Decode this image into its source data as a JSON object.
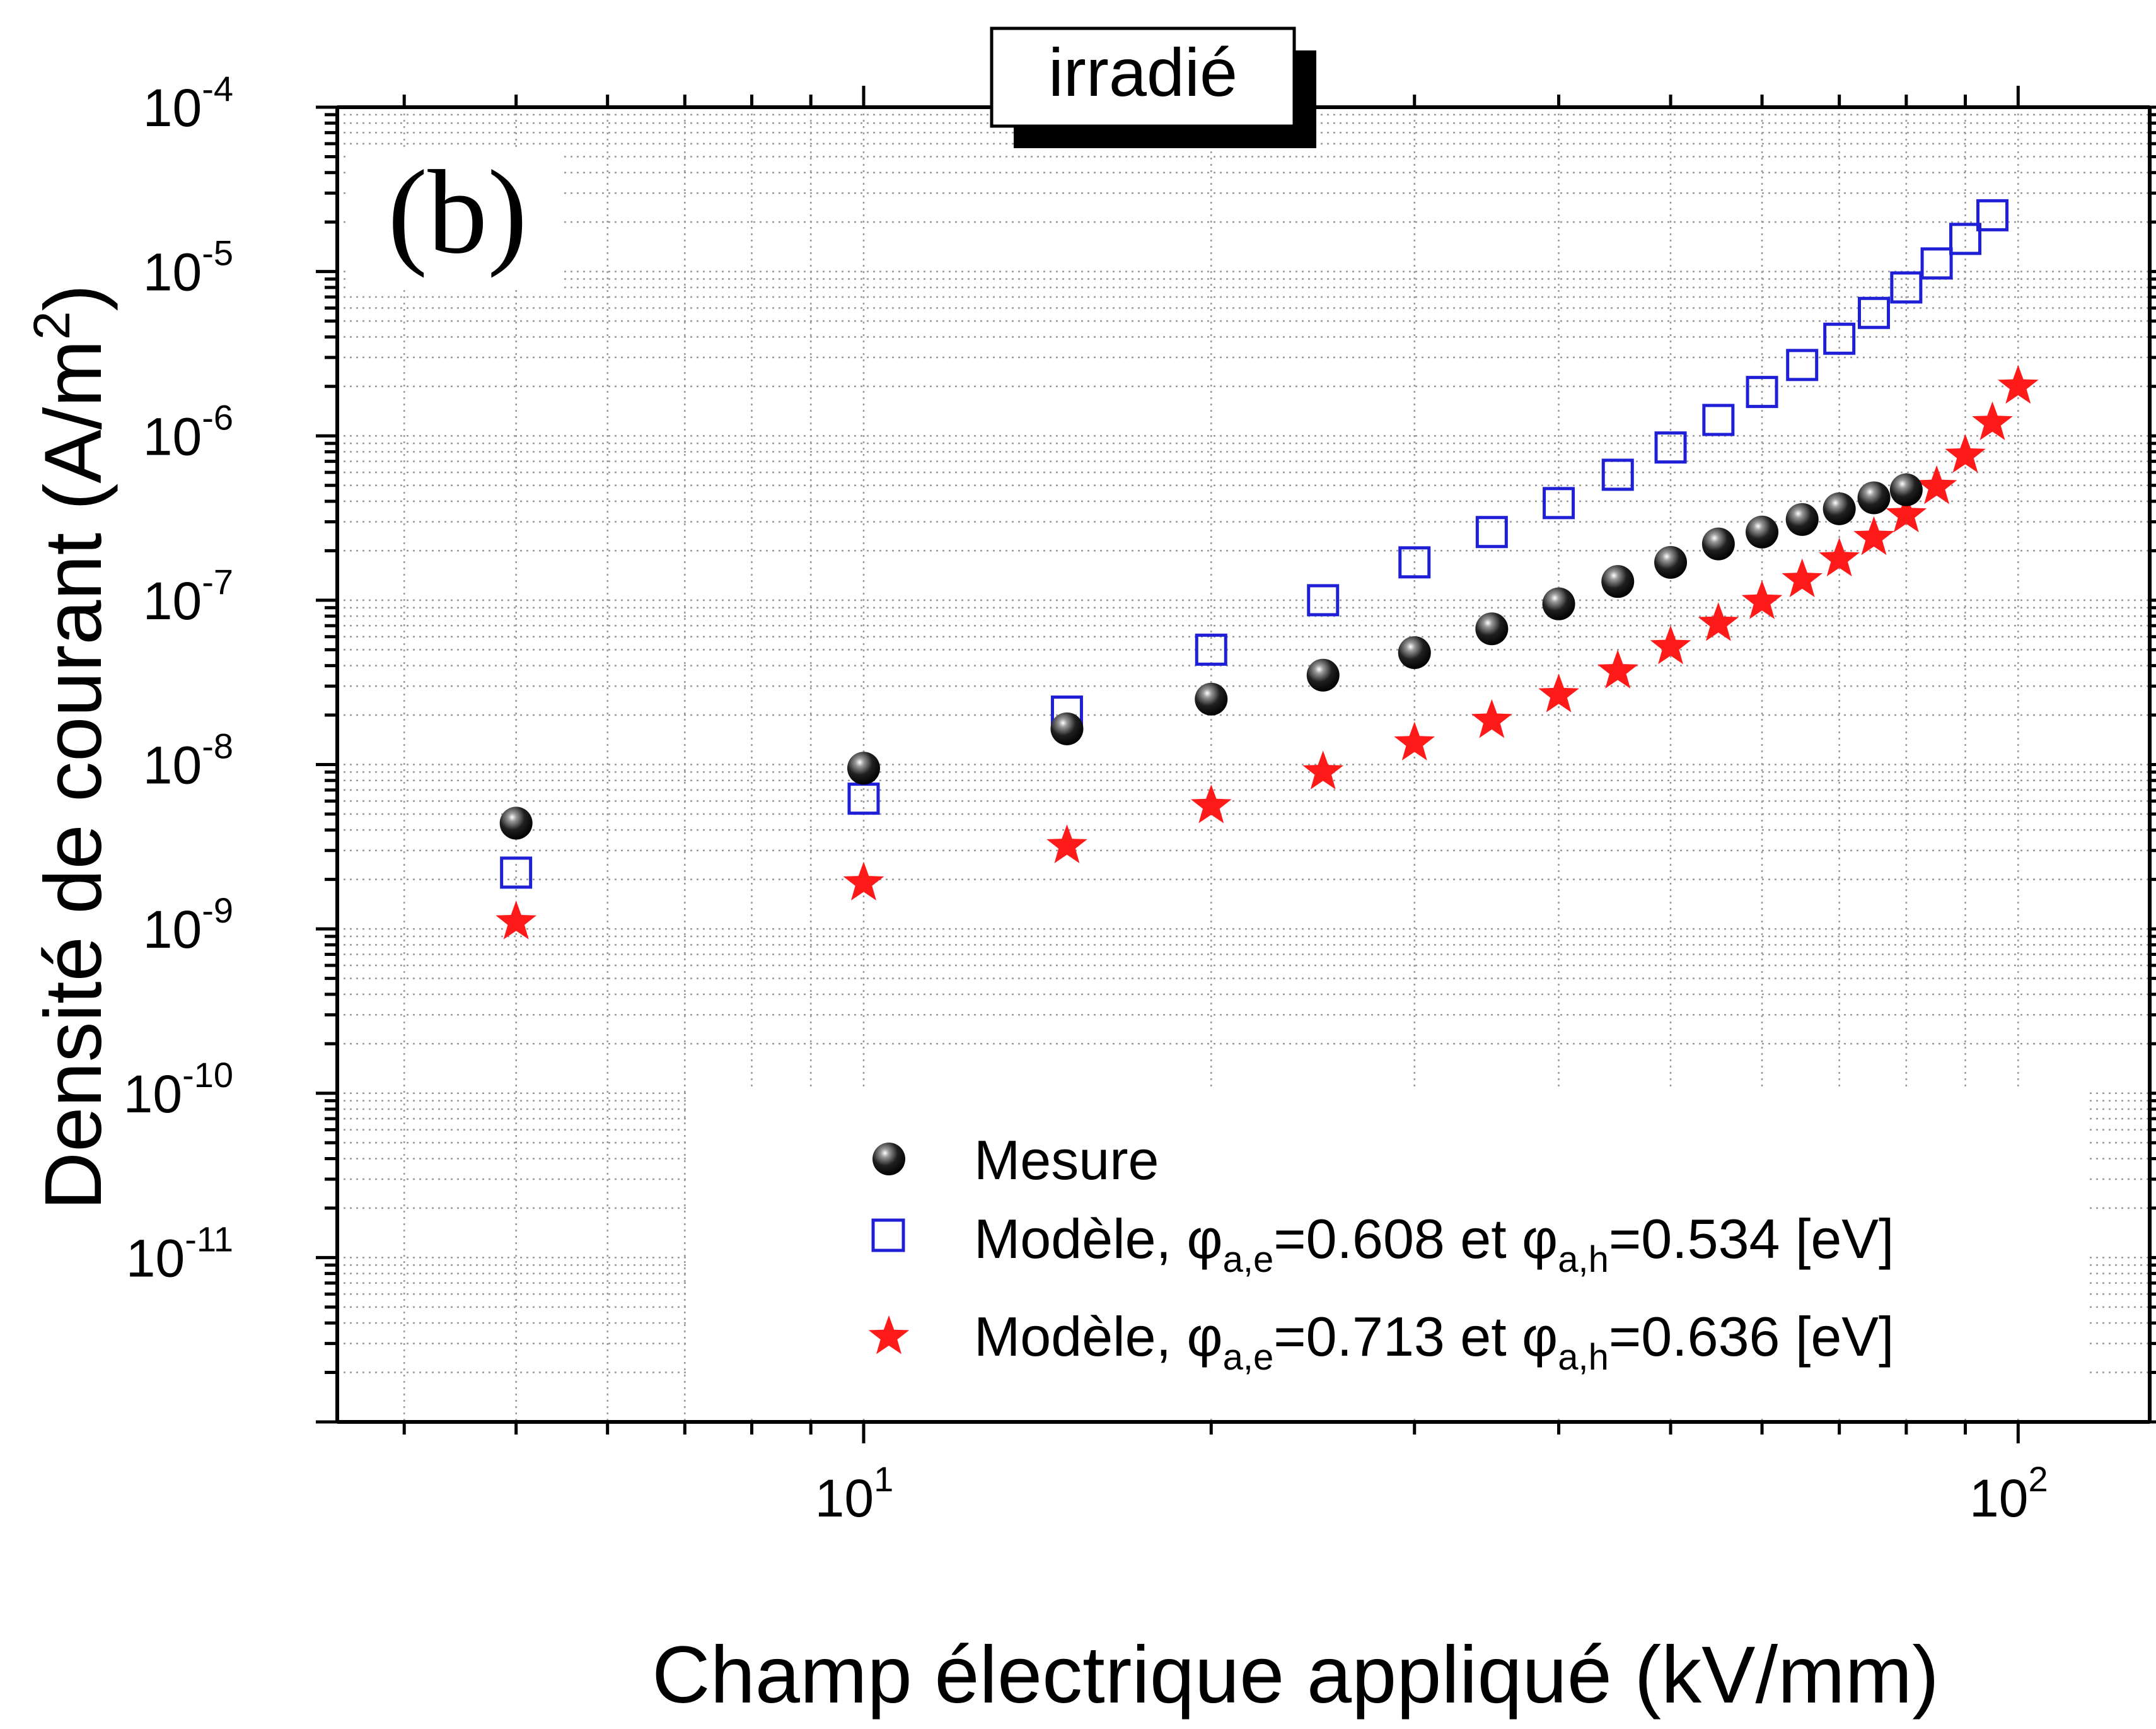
{
  "chart_data": {
    "type": "scatter",
    "title_box": "irradié",
    "panel_label": "(b)",
    "xlabel": "Champ électrique appliqué (kV/mm)",
    "ylabel": "Densité de courant (A/m²)",
    "ylabel_base": "Densité de courant (A/m",
    "ylabel_sup": "2",
    "ylabel_close": ")",
    "x_scale": "log",
    "y_scale": "log",
    "xlim": [
      3.5,
      130
    ],
    "ylim": [
      1e-12,
      0.0001
    ],
    "grid": true,
    "legend_position": "lower-right",
    "x_ticks": [
      {
        "value": 10,
        "base": "10",
        "exp": "1"
      },
      {
        "value": 100,
        "base": "10",
        "exp": "2"
      }
    ],
    "y_ticks": [
      {
        "value": 0.0001,
        "base": "10",
        "exp": "-4"
      },
      {
        "value": 1e-05,
        "base": "10",
        "exp": "-5"
      },
      {
        "value": 1e-06,
        "base": "10",
        "exp": "-6"
      },
      {
        "value": 1e-07,
        "base": "10",
        "exp": "-7"
      },
      {
        "value": 1e-08,
        "base": "10",
        "exp": "-8"
      },
      {
        "value": 1e-09,
        "base": "10",
        "exp": "-9"
      },
      {
        "value": 1e-10,
        "base": "10",
        "exp": "-10"
      },
      {
        "value": 1e-11,
        "base": "10",
        "exp": "-11"
      }
    ],
    "series": [
      {
        "name": "Mesure",
        "marker": "sphere",
        "color": "#000000",
        "points": [
          [
            5,
            4.4e-09
          ],
          [
            10,
            9.5e-09
          ],
          [
            15,
            1.65e-08
          ],
          [
            20,
            2.5e-08
          ],
          [
            25,
            3.5e-08
          ],
          [
            30,
            4.8e-08
          ],
          [
            35,
            6.7e-08
          ],
          [
            40,
            9.5e-08
          ],
          [
            45,
            1.3e-07
          ],
          [
            50,
            1.7e-07
          ],
          [
            55,
            2.2e-07
          ],
          [
            60,
            2.6e-07
          ],
          [
            65,
            3.1e-07
          ],
          [
            70,
            3.6e-07
          ],
          [
            75,
            4.2e-07
          ],
          [
            80,
            4.7e-07
          ]
        ]
      },
      {
        "name": "Modèle, φa,e=0.608 et φa,h=0.534 [eV]",
        "legend_parts": {
          "pre": "Modèle, ",
          "phi1": "φ",
          "sub1": "a,e",
          "mid": "=0.608 et ",
          "phi2": "φ",
          "sub2": "a,h",
          "post": "=0.534 [eV]"
        },
        "marker": "open-square",
        "color": "#1f1fd6",
        "points": [
          [
            5,
            2.2e-09
          ],
          [
            10,
            6.2e-09
          ],
          [
            15,
            2.1e-08
          ],
          [
            20,
            5e-08
          ],
          [
            25,
            1e-07
          ],
          [
            30,
            1.7e-07
          ],
          [
            35,
            2.6e-07
          ],
          [
            40,
            3.9e-07
          ],
          [
            45,
            5.8e-07
          ],
          [
            50,
            8.5e-07
          ],
          [
            55,
            1.25e-06
          ],
          [
            60,
            1.85e-06
          ],
          [
            65,
            2.7e-06
          ],
          [
            70,
            3.9e-06
          ],
          [
            75,
            5.6e-06
          ],
          [
            80,
            8e-06
          ],
          [
            85,
            1.12e-05
          ],
          [
            90,
            1.58e-05
          ],
          [
            95,
            2.2e-05
          ]
        ]
      },
      {
        "name": "Modèle, φa,e=0.713 et φa,h=0.636 [eV]",
        "legend_parts": {
          "pre": "Modèle, ",
          "phi1": "φ",
          "sub1": "a,e",
          "mid": "=0.713 et ",
          "phi2": "φ",
          "sub2": "a,h",
          "post": "=0.636 [eV]"
        },
        "marker": "star",
        "color": "#ff1a1a",
        "points": [
          [
            5,
            1.1e-09
          ],
          [
            10,
            1.9e-09
          ],
          [
            15,
            3.2e-09
          ],
          [
            20,
            5.6e-09
          ],
          [
            25,
            9e-09
          ],
          [
            30,
            1.35e-08
          ],
          [
            35,
            1.85e-08
          ],
          [
            40,
            2.65e-08
          ],
          [
            45,
            3.7e-08
          ],
          [
            50,
            5.2e-08
          ],
          [
            55,
            7.2e-08
          ],
          [
            60,
            9.8e-08
          ],
          [
            65,
            1.33e-07
          ],
          [
            70,
            1.78e-07
          ],
          [
            75,
            2.4e-07
          ],
          [
            80,
            3.3e-07
          ],
          [
            85,
            4.9e-07
          ],
          [
            90,
            7.6e-07
          ],
          [
            95,
            1.2e-06
          ],
          [
            100,
            2e-06
          ]
        ]
      }
    ]
  }
}
